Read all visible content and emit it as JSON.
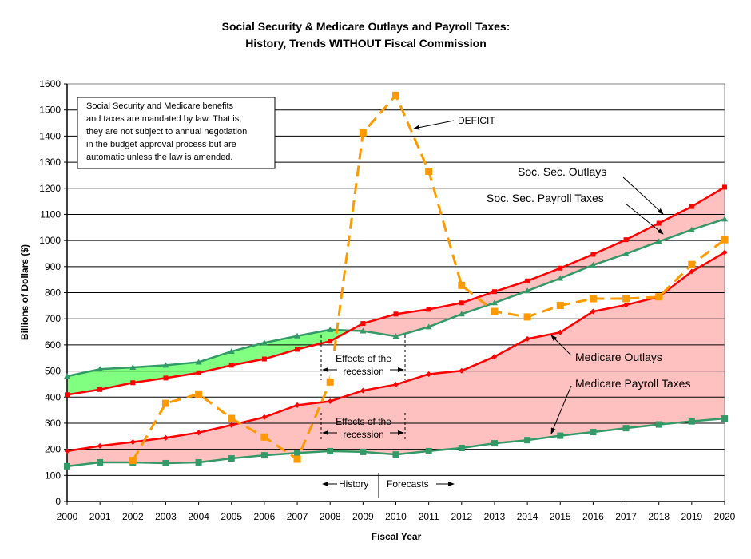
{
  "chart_data": {
    "type": "line",
    "title": "Social Security & Medicare Outlays and Payroll Taxes:",
    "subtitle": "History, Trends WITHOUT Fiscal Commission",
    "xlabel": "Fiscal Year",
    "ylabel": "Billions of Dollars ($)",
    "ylim": [
      0,
      1600
    ],
    "ytick_step": 100,
    "yticks": [
      "0",
      "100",
      "200",
      "300",
      "400",
      "500",
      "600",
      "700",
      "800",
      "900",
      "1000",
      "1100",
      "1200",
      "1300",
      "1400",
      "1500",
      "1600"
    ],
    "x": [
      2000,
      2001,
      2002,
      2003,
      2004,
      2005,
      2006,
      2007,
      2008,
      2009,
      2010,
      2011,
      2012,
      2013,
      2014,
      2015,
      2016,
      2017,
      2018,
      2019,
      2020
    ],
    "grid": true,
    "series": [
      {
        "name": "Soc. Sec. Outlays",
        "key": "ss_outlays",
        "color": "#ff0000",
        "marker": "square",
        "dashed": false,
        "values": [
          409,
          429,
          455,
          473,
          493,
          522,
          546,
          583,
          614,
          682,
          718,
          736,
          761,
          804,
          845,
          894,
          947,
          1003,
          1066,
          1130,
          1204
        ]
      },
      {
        "name": "Soc. Sec. Payroll Taxes",
        "key": "ss_taxes",
        "color": "#339966",
        "marker": "triangle",
        "dashed": false,
        "values": [
          480,
          507,
          514,
          522,
          534,
          575,
          608,
          634,
          658,
          653,
          633,
          669,
          718,
          761,
          807,
          855,
          906,
          949,
          996,
          1041,
          1082
        ]
      },
      {
        "name": "Medicare Outlays",
        "key": "med_outlays",
        "color": "#ff0000",
        "marker": "diamond",
        "dashed": false,
        "values": [
          193,
          213,
          228,
          244,
          264,
          293,
          323,
          369,
          384,
          425,
          448,
          488,
          501,
          555,
          623,
          648,
          728,
          753,
          784,
          881,
          954
        ]
      },
      {
        "name": "Medicare Payroll Taxes",
        "key": "med_taxes",
        "color": "#339966",
        "marker": "square",
        "dashed": false,
        "values": [
          135,
          150,
          150,
          147,
          150,
          165,
          177,
          186,
          193,
          190,
          180,
          193,
          205,
          223,
          235,
          252,
          266,
          281,
          295,
          307,
          318
        ]
      },
      {
        "name": "DEFICIT",
        "key": "deficit",
        "color": "#ff9900",
        "marker": "square",
        "dashed": true,
        "start_year": 2002,
        "values": [
          157,
          376,
          412,
          318,
          247,
          162,
          458,
          1413,
          1556,
          1265,
          828,
          728,
          707,
          751,
          777,
          777,
          784,
          908,
          1003
        ]
      }
    ],
    "fills": {
      "surplus_color": "#80ff80",
      "shortfall_color": "#ffc0c0"
    },
    "annotations": {
      "note_lines": [
        "Social Security and Medicare benefits",
        "and taxes are mandated by law. That is,",
        "they are not subject to annual negotiation",
        "in the budget approval process but are",
        "automatic unless the law is amended."
      ],
      "deficit_label": "DEFICIT",
      "ss_outlays_label": "Soc. Sec. Outlays",
      "ss_taxes_label": "Soc. Sec. Payroll Taxes",
      "med_outlays_label": "Medicare Outlays",
      "med_taxes_label": "Medicare Payroll Taxes",
      "recession_line1": "Effects of the",
      "recession_line2": "recession",
      "history_label": "History",
      "forecasts_label": "Forecasts"
    }
  }
}
